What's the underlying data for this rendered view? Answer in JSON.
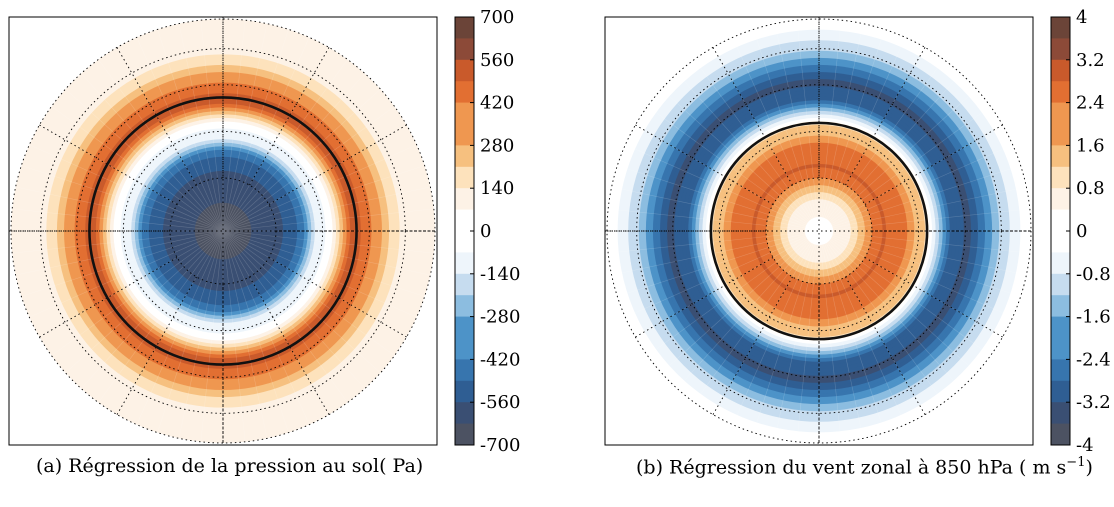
{
  "chart_data": [
    {
      "type": "heatmap",
      "projection": "polar-stereographic",
      "caption": "(a) Régression de la pression au sol( Pa)",
      "colorbar": {
        "ticks": [
          "700",
          "560",
          "420",
          "280",
          "140",
          "0",
          "-140",
          "-280",
          "-420",
          "-560",
          "-700"
        ],
        "levels": [
          700,
          560,
          420,
          280,
          140,
          0,
          -140,
          -280,
          -420,
          -560,
          -700
        ],
        "range": [
          -700,
          700
        ]
      },
      "field": {
        "description_rings": [
          {
            "r_fraction": 0.0,
            "value": -700
          },
          {
            "r_fraction": 0.15,
            "value": -650
          },
          {
            "r_fraction": 0.3,
            "value": -560
          },
          {
            "r_fraction": 0.38,
            "value": -420
          },
          {
            "r_fraction": 0.43,
            "value": -140
          },
          {
            "r_fraction": 0.5,
            "value": 0
          },
          {
            "r_fraction": 0.56,
            "value": 280
          },
          {
            "r_fraction": 0.62,
            "value": 560
          },
          {
            "r_fraction": 0.68,
            "value": 420
          },
          {
            "r_fraction": 0.76,
            "value": 280
          },
          {
            "r_fraction": 0.82,
            "value": 140
          },
          {
            "r_fraction": 1.0,
            "value": 40
          }
        ],
        "contour_ring_fraction": 0.63
      },
      "grid": true
    },
    {
      "type": "heatmap",
      "projection": "polar-stereographic",
      "caption": "(b) Régression du vent zonal à 850 hPa ( m s",
      "caption_superscript": "−1",
      "caption_end": ")",
      "colorbar": {
        "ticks": [
          "4",
          "3.2",
          "2.4",
          "1.6",
          "0.8",
          "0",
          "-0.8",
          "-1.6",
          "-2.4",
          "-3.2",
          "-4"
        ],
        "levels": [
          4,
          3.2,
          2.4,
          1.6,
          0.8,
          0,
          -0.8,
          -1.6,
          -2.4,
          -3.2,
          -4
        ],
        "range": [
          -4,
          4
        ]
      },
      "field": {
        "description_rings": [
          {
            "r_fraction": 0.0,
            "value": 0
          },
          {
            "r_fraction": 0.12,
            "value": 0.4
          },
          {
            "r_fraction": 0.2,
            "value": 1.6
          },
          {
            "r_fraction": 0.3,
            "value": 2.8
          },
          {
            "r_fraction": 0.4,
            "value": 2.4
          },
          {
            "r_fraction": 0.5,
            "value": 1.2
          },
          {
            "r_fraction": 0.56,
            "value": -1.2
          },
          {
            "r_fraction": 0.62,
            "value": -2.8
          },
          {
            "r_fraction": 0.7,
            "value": -3.4
          },
          {
            "r_fraction": 0.78,
            "value": -2.4
          },
          {
            "r_fraction": 0.86,
            "value": -1.2
          },
          {
            "r_fraction": 0.94,
            "value": -0.4
          },
          {
            "r_fraction": 1.0,
            "value": 0.2
          }
        ],
        "contour_ring_fraction": 0.51
      },
      "grid": true
    }
  ],
  "colors": {
    "scale": [
      "#4c5262",
      "#3a4f73",
      "#2f5e93",
      "#3775ae",
      "#4d93c8",
      "#8cbde0",
      "#c6dcef",
      "#eef5fb",
      "#ffffff",
      "#fdf2e6",
      "#fde2bc",
      "#f6c07f",
      "#ef9750",
      "#e26f32",
      "#c95a2b",
      "#8c4a38",
      "#6b4438"
    ]
  }
}
